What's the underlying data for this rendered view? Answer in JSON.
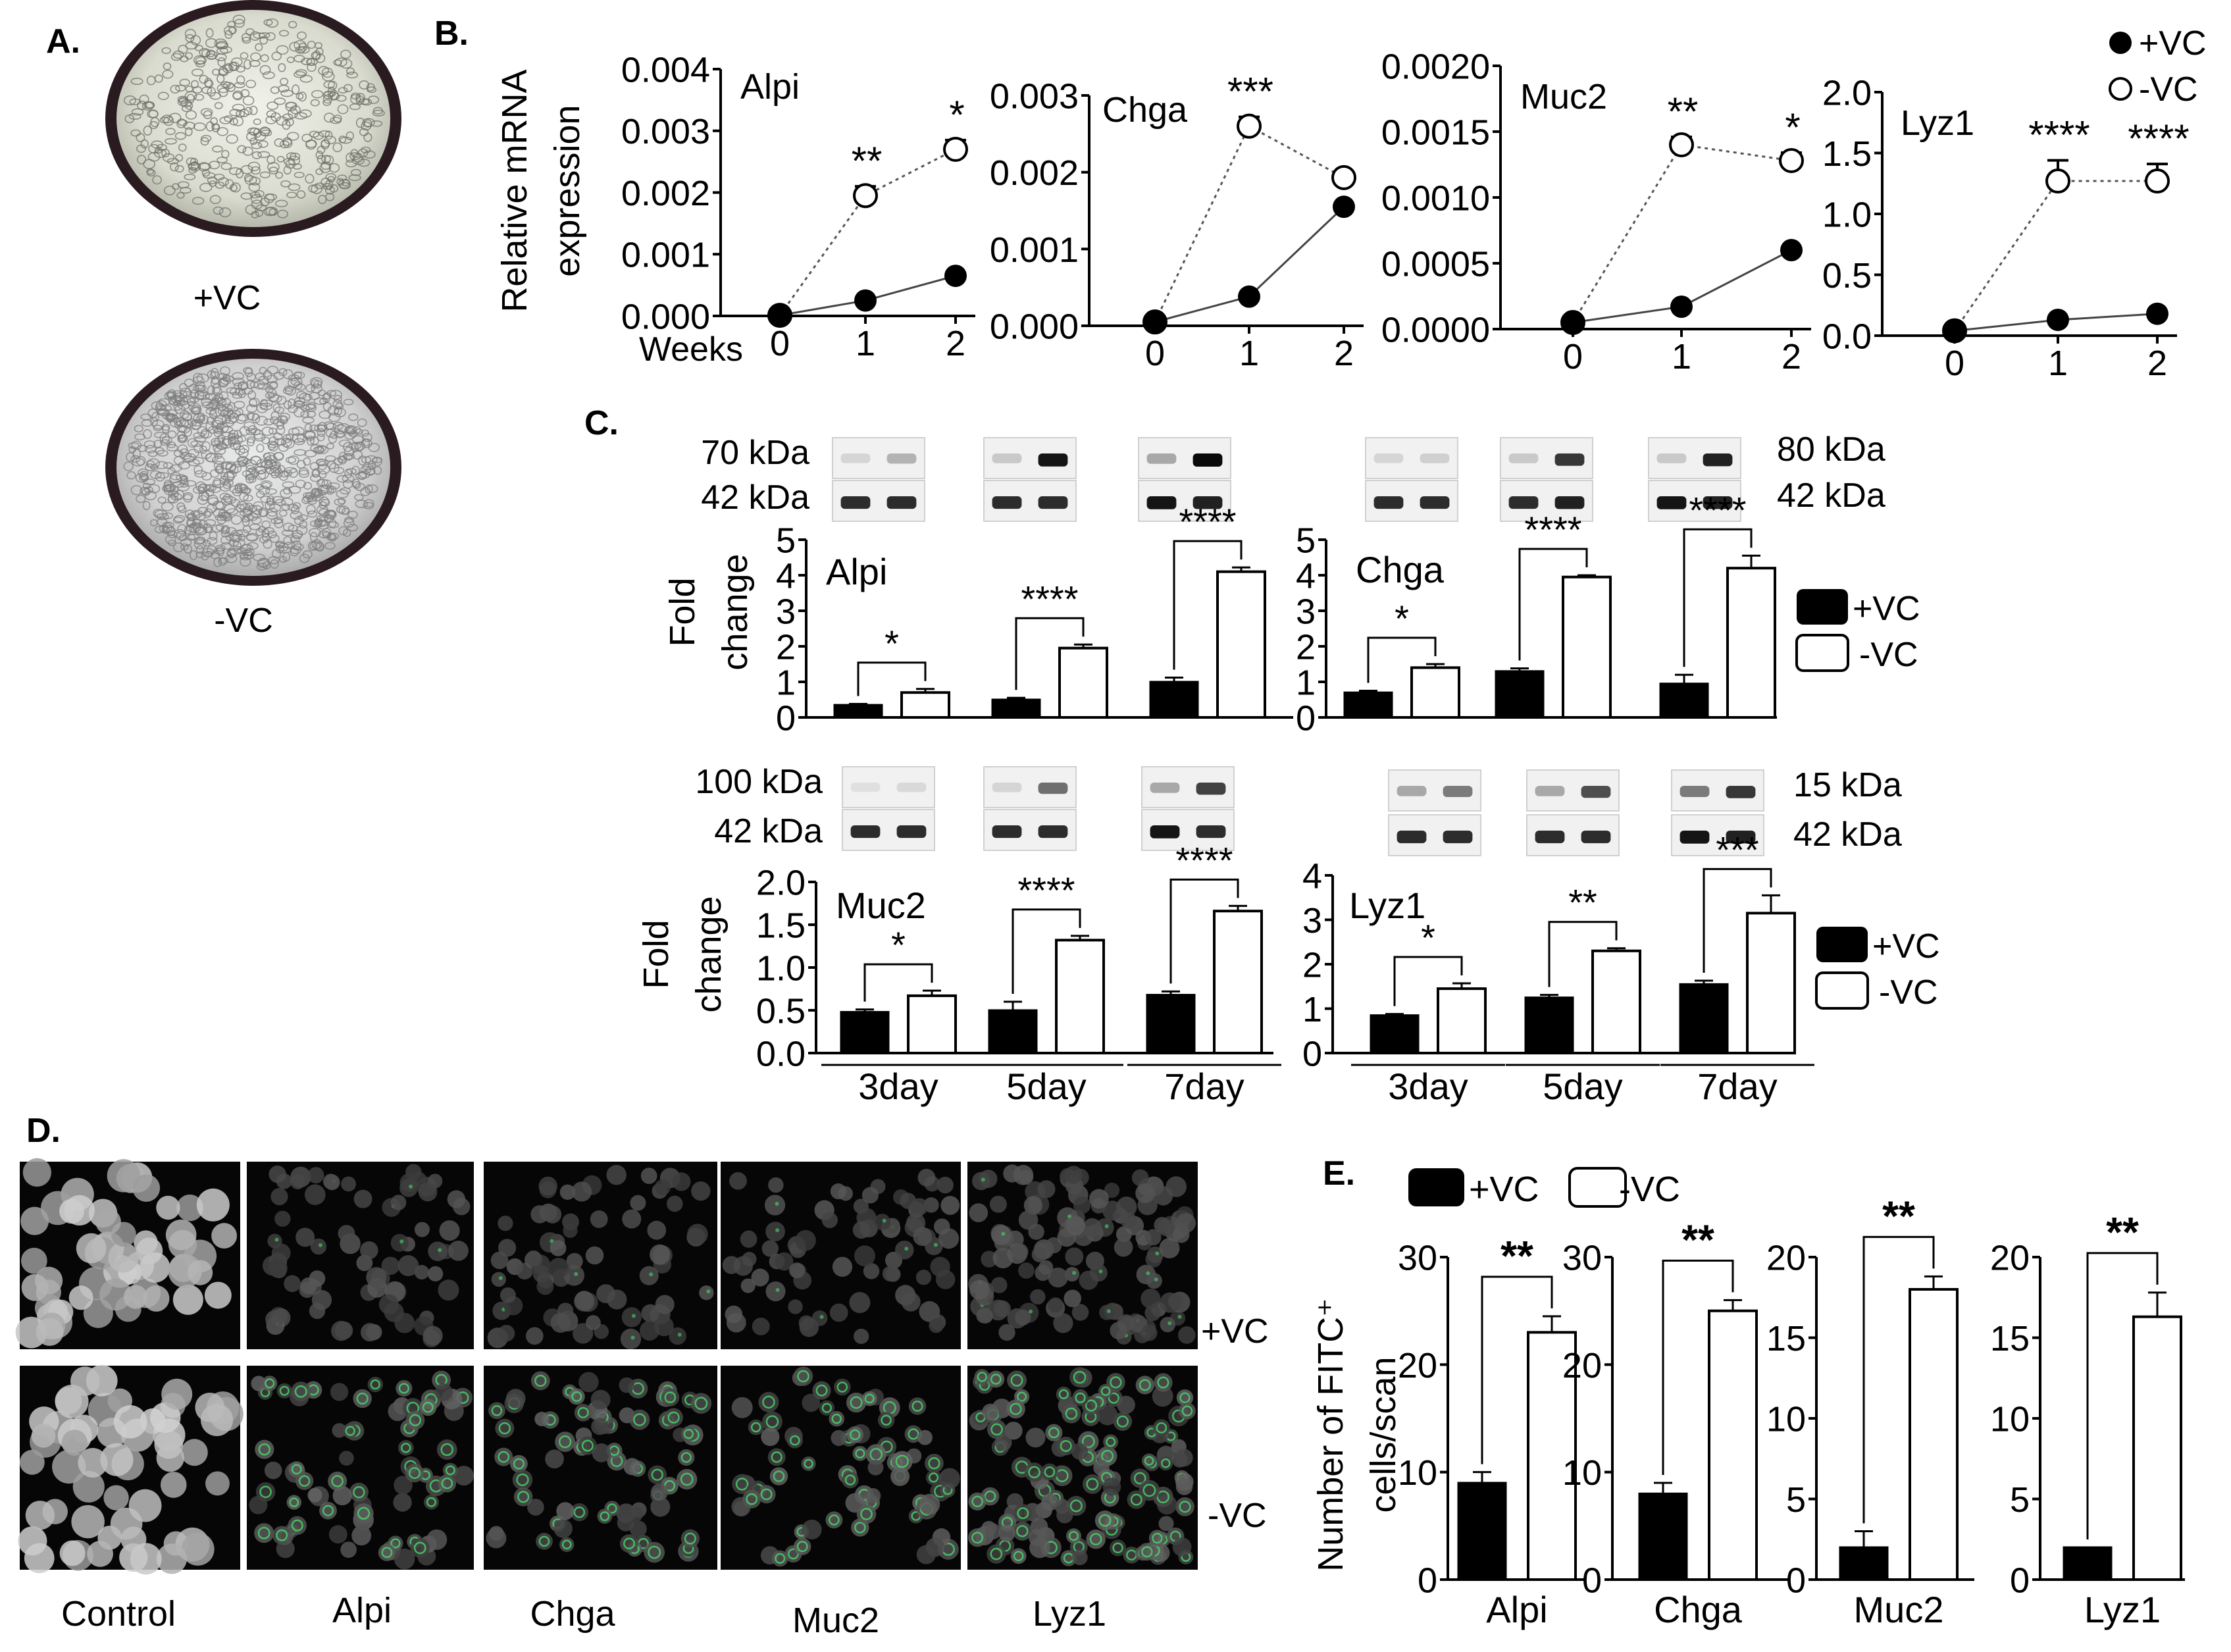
{
  "panel_labels": {
    "A": "A.",
    "B": "B.",
    "C": "C.",
    "D": "D.",
    "E": "E."
  },
  "panelA": {
    "top_label": "+VC",
    "bottom_label": "-VC"
  },
  "panelB": {
    "ylabel_line1": "Relative mRNA",
    "ylabel_line2": "expression",
    "xlabel": "Weeks",
    "legend": {
      "plus": "+VC",
      "minus": "-VC"
    }
  },
  "panelC": {
    "ylabel_line1": "Fold",
    "ylabel_line2": "change",
    "days": [
      "3day",
      "5day",
      "7day"
    ],
    "legend": {
      "plus": "+VC",
      "minus": "-VC"
    },
    "blot_labels": {
      "alpi_top": "70 kDa",
      "alpi_ref": "42 kDa",
      "chga_top": "80 kDa",
      "chga_ref": "42 kDa",
      "muc2_top": "100 kDa",
      "muc2_ref": "42 kDa",
      "lyz1_top": "15 kDa",
      "lyz1_ref": "42 kDa"
    }
  },
  "panelD": {
    "columns": [
      "Control",
      "Alpi",
      "Chga",
      "Muc2",
      "Lyz1"
    ],
    "rows": [
      "+VC",
      "-VC"
    ]
  },
  "panelE": {
    "ylabel_line1": "Number of FITC⁺",
    "ylabel_line2": "cells/scan",
    "legend": {
      "plus": "+VC",
      "minus": "-VC"
    }
  },
  "colors": {
    "filled": "#000000",
    "open": "#ffffff",
    "green": "#48d66a"
  },
  "chart_data": [
    {
      "id": "B-Alpi",
      "type": "line",
      "title": "Alpi",
      "x": [
        0,
        1,
        2
      ],
      "xticks": [
        "0",
        "1",
        "2"
      ],
      "ylim": [
        0,
        0.004
      ],
      "yticks": [
        "0.000",
        "0.001",
        "0.002",
        "0.003",
        "0.004"
      ],
      "series": [
        {
          "name": "+VC",
          "values": [
            1e-05,
            0.00025,
            0.00065
          ]
        },
        {
          "name": "-VC",
          "values": [
            1e-05,
            0.00195,
            0.0027
          ],
          "errors": [
            0,
            0.00015,
            0.00015
          ]
        }
      ],
      "annotations": [
        "",
        "**",
        "*"
      ]
    },
    {
      "id": "B-Chga",
      "type": "line",
      "title": "Chga",
      "x": [
        0,
        1,
        2
      ],
      "xticks": [
        "0",
        "1",
        "2"
      ],
      "ylim": [
        0,
        0.003
      ],
      "yticks": [
        "0.000",
        "0.001",
        "0.002",
        "0.003"
      ],
      "series": [
        {
          "name": "+VC",
          "values": [
            5e-05,
            0.00038,
            0.00155
          ]
        },
        {
          "name": "-VC",
          "values": [
            5e-05,
            0.0026,
            0.00193
          ],
          "errors": [
            0,
            0.00012,
            0
          ]
        }
      ],
      "annotations": [
        "",
        "***",
        ""
      ]
    },
    {
      "id": "B-Muc2",
      "type": "line",
      "title": "Muc2",
      "x": [
        0,
        1,
        2
      ],
      "xticks": [
        "0",
        "1",
        "2"
      ],
      "ylim": [
        0,
        0.002
      ],
      "yticks": [
        "0.0000",
        "0.0005",
        "0.0010",
        "0.0015",
        "0.0020"
      ],
      "series": [
        {
          "name": "+VC",
          "values": [
            5e-05,
            0.00017,
            0.0006
          ]
        },
        {
          "name": "-VC",
          "values": [
            5e-05,
            0.0014,
            0.00128
          ],
          "errors": [
            0,
            6e-05,
            6e-05
          ]
        }
      ],
      "annotations": [
        "",
        "**",
        "*"
      ]
    },
    {
      "id": "B-Lyz1",
      "type": "line",
      "title": "Lyz1",
      "x": [
        0,
        1,
        2
      ],
      "xticks": [
        "0",
        "1",
        "2"
      ],
      "ylim": [
        0,
        2.0
      ],
      "yticks": [
        "0.0",
        "0.5",
        "1.0",
        "1.5",
        "2.0"
      ],
      "series": [
        {
          "name": "+VC",
          "values": [
            0.04,
            0.13,
            0.18
          ]
        },
        {
          "name": "-VC",
          "values": [
            0.04,
            1.27,
            1.27
          ],
          "errors": [
            0,
            0.17,
            0.14
          ]
        }
      ],
      "annotations": [
        "",
        "****",
        "****"
      ]
    },
    {
      "id": "C-Alpi",
      "type": "bar",
      "title": "Alpi",
      "categories": [
        "3day",
        "5day",
        "7day"
      ],
      "ylim": [
        0,
        5
      ],
      "yticks": [
        "0",
        "1",
        "2",
        "3",
        "4",
        "5"
      ],
      "series": [
        {
          "name": "+VC",
          "values": [
            0.35,
            0.5,
            1.0
          ],
          "errors": [
            0.03,
            0.05,
            0.12
          ]
        },
        {
          "name": "-VC",
          "values": [
            0.7,
            1.95,
            4.1
          ],
          "errors": [
            0.1,
            0.1,
            0.12
          ]
        }
      ],
      "annotations": [
        "*",
        "****",
        "****"
      ]
    },
    {
      "id": "C-Chga",
      "type": "bar",
      "title": "Chga",
      "categories": [
        "3day",
        "5day",
        "7day"
      ],
      "ylim": [
        0,
        5
      ],
      "yticks": [
        "0",
        "1",
        "2",
        "3",
        "4",
        "5"
      ],
      "series": [
        {
          "name": "+VC",
          "values": [
            0.7,
            1.3,
            0.95
          ],
          "errors": [
            0.05,
            0.08,
            0.25
          ]
        },
        {
          "name": "-VC",
          "values": [
            1.4,
            3.95,
            4.2
          ],
          "errors": [
            0.1,
            0.05,
            0.35
          ]
        }
      ],
      "annotations": [
        "*",
        "****",
        "****"
      ]
    },
    {
      "id": "C-Muc2",
      "type": "bar",
      "title": "Muc2",
      "categories": [
        "3day",
        "5day",
        "7day"
      ],
      "ylim": [
        0,
        2.0
      ],
      "yticks": [
        "0.0",
        "0.5",
        "1.0",
        "1.5",
        "2.0"
      ],
      "series": [
        {
          "name": "+VC",
          "values": [
            0.48,
            0.5,
            0.68
          ],
          "errors": [
            0.03,
            0.1,
            0.04
          ]
        },
        {
          "name": "-VC",
          "values": [
            0.67,
            1.32,
            1.66
          ],
          "errors": [
            0.06,
            0.05,
            0.06
          ]
        }
      ],
      "annotations": [
        "*",
        "****",
        "****"
      ]
    },
    {
      "id": "C-Lyz1",
      "type": "bar",
      "title": "Lyz1",
      "categories": [
        "3day",
        "5day",
        "7day"
      ],
      "ylim": [
        0,
        4
      ],
      "yticks": [
        "0",
        "1",
        "2",
        "3",
        "4"
      ],
      "series": [
        {
          "name": "+VC",
          "values": [
            0.85,
            1.25,
            1.55
          ],
          "errors": [
            0.03,
            0.06,
            0.08
          ]
        },
        {
          "name": "-VC",
          "values": [
            1.45,
            2.3,
            3.15
          ],
          "errors": [
            0.12,
            0.06,
            0.4
          ]
        }
      ],
      "annotations": [
        "*",
        "**",
        "***"
      ]
    },
    {
      "id": "E-Alpi",
      "type": "bar",
      "categories": [
        "Alpi"
      ],
      "ylim": [
        0,
        30
      ],
      "yticks": [
        "0",
        "10",
        "20",
        "30"
      ],
      "series": [
        {
          "name": "+VC",
          "values": [
            9
          ],
          "errors": [
            1
          ]
        },
        {
          "name": "-VC",
          "values": [
            23
          ],
          "errors": [
            1.5
          ]
        }
      ],
      "annotations": [
        "**"
      ]
    },
    {
      "id": "E-Chga",
      "type": "bar",
      "categories": [
        "Chga"
      ],
      "ylim": [
        0,
        30
      ],
      "yticks": [
        "0",
        "10",
        "20",
        "30"
      ],
      "series": [
        {
          "name": "+VC",
          "values": [
            8
          ],
          "errors": [
            1
          ]
        },
        {
          "name": "-VC",
          "values": [
            25
          ],
          "errors": [
            1
          ]
        }
      ],
      "annotations": [
        "**"
      ]
    },
    {
      "id": "E-Muc2",
      "type": "bar",
      "categories": [
        "Muc2"
      ],
      "ylim": [
        0,
        20
      ],
      "yticks": [
        "0",
        "5",
        "10",
        "15",
        "20"
      ],
      "series": [
        {
          "name": "+VC",
          "values": [
            2
          ],
          "errors": [
            1
          ]
        },
        {
          "name": "-VC",
          "values": [
            18
          ],
          "errors": [
            0.8
          ]
        }
      ],
      "annotations": [
        "**"
      ]
    },
    {
      "id": "E-Lyz1",
      "type": "bar",
      "categories": [
        "Lyz1"
      ],
      "ylim": [
        0,
        20
      ],
      "yticks": [
        "0",
        "5",
        "10",
        "15",
        "20"
      ],
      "series": [
        {
          "name": "+VC",
          "values": [
            2
          ],
          "errors": [
            0
          ]
        },
        {
          "name": "-VC",
          "values": [
            16.3
          ],
          "errors": [
            1.5
          ]
        }
      ],
      "annotations": [
        "**"
      ]
    }
  ]
}
